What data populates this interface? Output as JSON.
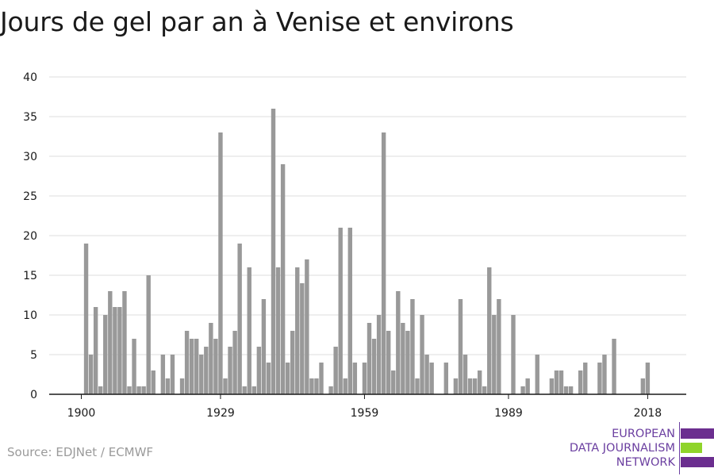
{
  "title": "Jours de gel par an à Venise et environs",
  "source": "Source: EDJNet / ECMWF",
  "logo": {
    "line1": "EUROPEAN",
    "line2": "DATA JOURNALISM",
    "line3": "NETWORK",
    "colors": {
      "purple": "#6b2e8f",
      "green": "#8fd42a",
      "text": "#6b3fa0"
    }
  },
  "colors": {
    "bar": "#999999",
    "grid": "#dddddd",
    "axis": "#1a1a1a"
  },
  "chart_data": {
    "type": "bar",
    "title": "Jours de gel par an à Venise et environs",
    "xlabel": "",
    "ylabel": "",
    "ylim": [
      0,
      40
    ],
    "yticks": [
      0,
      5,
      10,
      15,
      20,
      25,
      30,
      35,
      40
    ],
    "xticks": [
      1900,
      1929,
      1959,
      1989,
      2018
    ],
    "grid": true,
    "categories": [
      1900,
      1901,
      1902,
      1903,
      1904,
      1905,
      1906,
      1907,
      1908,
      1909,
      1910,
      1911,
      1912,
      1913,
      1914,
      1915,
      1916,
      1917,
      1918,
      1919,
      1920,
      1921,
      1922,
      1923,
      1924,
      1925,
      1926,
      1927,
      1928,
      1929,
      1930,
      1931,
      1932,
      1933,
      1934,
      1935,
      1936,
      1937,
      1938,
      1939,
      1940,
      1941,
      1942,
      1943,
      1944,
      1945,
      1946,
      1947,
      1948,
      1949,
      1950,
      1951,
      1952,
      1953,
      1954,
      1955,
      1956,
      1957,
      1958,
      1959,
      1960,
      1961,
      1962,
      1963,
      1964,
      1965,
      1966,
      1967,
      1968,
      1969,
      1970,
      1971,
      1972,
      1973,
      1974,
      1975,
      1976,
      1977,
      1978,
      1979,
      1980,
      1981,
      1982,
      1983,
      1984,
      1985,
      1986,
      1987,
      1988,
      1989,
      1990,
      1991,
      1992,
      1993,
      1994,
      1995,
      1996,
      1997,
      1998,
      1999,
      2000,
      2001,
      2002,
      2003,
      2004,
      2005,
      2006,
      2007,
      2008,
      2009,
      2010,
      2011,
      2012,
      2013,
      2014,
      2015,
      2016,
      2017,
      2018,
      2019,
      2020
    ],
    "values": [
      0,
      19,
      5,
      11,
      1,
      10,
      13,
      11,
      11,
      13,
      1,
      7,
      1,
      1,
      15,
      3,
      0,
      5,
      2,
      5,
      0,
      2,
      8,
      7,
      7,
      5,
      6,
      9,
      7,
      33,
      2,
      6,
      8,
      19,
      1,
      16,
      1,
      6,
      12,
      4,
      36,
      16,
      29,
      4,
      8,
      16,
      14,
      17,
      2,
      2,
      4,
      0,
      1,
      6,
      21,
      2,
      21,
      4,
      0,
      4,
      9,
      7,
      10,
      33,
      8,
      3,
      13,
      9,
      8,
      12,
      2,
      10,
      5,
      4,
      0,
      0,
      4,
      0,
      2,
      12,
      5,
      2,
      2,
      3,
      1,
      16,
      10,
      12,
      0,
      0,
      10,
      0,
      1,
      2,
      0,
      5,
      0,
      0,
      2,
      3,
      3,
      1,
      1,
      0,
      3,
      4,
      0,
      0,
      4,
      5,
      0,
      7,
      0,
      0,
      0,
      0,
      0,
      2,
      4,
      0,
      0
    ]
  }
}
